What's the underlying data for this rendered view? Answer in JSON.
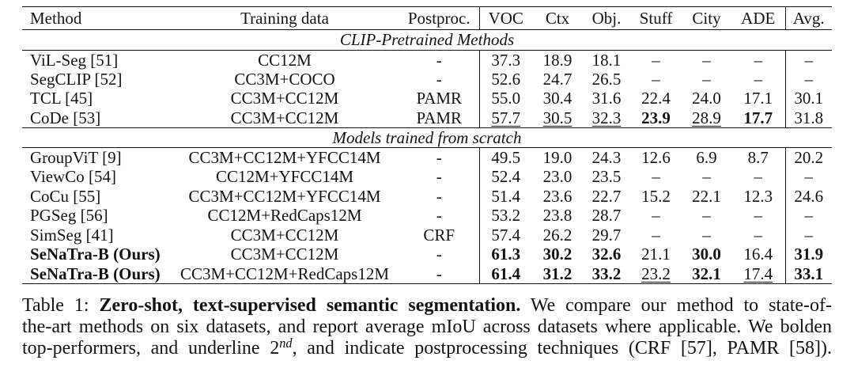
{
  "table": {
    "columns": [
      "Method",
      "Training data",
      "Postproc.",
      "VOC",
      "Ctx",
      "Obj.",
      "Stuff",
      "City",
      "ADE",
      "Avg."
    ],
    "sections": [
      {
        "title": "CLIP-Pretrained Methods",
        "rows": [
          {
            "method": "ViL-Seg [51]",
            "method_mark": "",
            "training_data": "CC12M",
            "postproc": "-",
            "scores": [
              {
                "value": "37.3",
                "mark": ""
              },
              {
                "value": "18.9",
                "mark": ""
              },
              {
                "value": "18.1",
                "mark": ""
              },
              {
                "value": "–",
                "mark": ""
              },
              {
                "value": "–",
                "mark": ""
              },
              {
                "value": "–",
                "mark": ""
              },
              {
                "value": "–",
                "mark": ""
              }
            ]
          },
          {
            "method": "SegCLIP [52]",
            "method_mark": "",
            "training_data": "CC3M+COCO",
            "postproc": "-",
            "scores": [
              {
                "value": "52.6",
                "mark": ""
              },
              {
                "value": "24.7",
                "mark": ""
              },
              {
                "value": "26.5",
                "mark": ""
              },
              {
                "value": "–",
                "mark": ""
              },
              {
                "value": "–",
                "mark": ""
              },
              {
                "value": "–",
                "mark": ""
              },
              {
                "value": "–",
                "mark": ""
              }
            ]
          },
          {
            "method": "TCL [45]",
            "method_mark": "",
            "training_data": "CC3M+CC12M",
            "postproc": "PAMR",
            "scores": [
              {
                "value": "55.0",
                "mark": ""
              },
              {
                "value": "30.4",
                "mark": ""
              },
              {
                "value": "31.6",
                "mark": ""
              },
              {
                "value": "22.4",
                "mark": ""
              },
              {
                "value": "24.0",
                "mark": ""
              },
              {
                "value": "17.1",
                "mark": ""
              },
              {
                "value": "30.1",
                "mark": ""
              }
            ]
          },
          {
            "method": "CoDe [53]",
            "method_mark": "",
            "training_data": "CC3M+CC12M",
            "postproc": "PAMR",
            "scores": [
              {
                "value": "57.7",
                "mark": "underline"
              },
              {
                "value": "30.5",
                "mark": "underline"
              },
              {
                "value": "32.3",
                "mark": "underline"
              },
              {
                "value": "23.9",
                "mark": "bold"
              },
              {
                "value": "28.9",
                "mark": "underline"
              },
              {
                "value": "17.7",
                "mark": "bold"
              },
              {
                "value": "31.8",
                "mark": ""
              }
            ]
          }
        ]
      },
      {
        "title": "Models trained from scratch",
        "rows": [
          {
            "method": "GroupViT [9]",
            "method_mark": "",
            "training_data": "CC3M+CC12M+YFCC14M",
            "postproc": "-",
            "scores": [
              {
                "value": "49.5",
                "mark": ""
              },
              {
                "value": "19.0",
                "mark": ""
              },
              {
                "value": "24.3",
                "mark": ""
              },
              {
                "value": "12.6",
                "mark": ""
              },
              {
                "value": "6.9",
                "mark": ""
              },
              {
                "value": "8.7",
                "mark": ""
              },
              {
                "value": "20.2",
                "mark": ""
              }
            ]
          },
          {
            "method": "ViewCo [54]",
            "method_mark": "",
            "training_data": "CC12M+YFCC14M",
            "postproc": "-",
            "scores": [
              {
                "value": "52.4",
                "mark": ""
              },
              {
                "value": "23.0",
                "mark": ""
              },
              {
                "value": "23.5",
                "mark": ""
              },
              {
                "value": "–",
                "mark": ""
              },
              {
                "value": "–",
                "mark": ""
              },
              {
                "value": "–",
                "mark": ""
              },
              {
                "value": "–",
                "mark": ""
              }
            ]
          },
          {
            "method": "CoCu [55]",
            "method_mark": "",
            "training_data": "CC3M+CC12M+YFCC14M",
            "postproc": "-",
            "scores": [
              {
                "value": "51.4",
                "mark": ""
              },
              {
                "value": "23.6",
                "mark": ""
              },
              {
                "value": "22.7",
                "mark": ""
              },
              {
                "value": "15.2",
                "mark": ""
              },
              {
                "value": "22.1",
                "mark": ""
              },
              {
                "value": "12.3",
                "mark": ""
              },
              {
                "value": "24.6",
                "mark": ""
              }
            ]
          },
          {
            "method": "PGSeg [56]",
            "method_mark": "",
            "training_data": "CC12M+RedCaps12M",
            "postproc": "-",
            "scores": [
              {
                "value": "53.2",
                "mark": ""
              },
              {
                "value": "23.8",
                "mark": ""
              },
              {
                "value": "28.7",
                "mark": ""
              },
              {
                "value": "–",
                "mark": ""
              },
              {
                "value": "–",
                "mark": ""
              },
              {
                "value": "–",
                "mark": ""
              },
              {
                "value": "–",
                "mark": ""
              }
            ]
          },
          {
            "method": "SimSeg [41]",
            "method_mark": "",
            "training_data": "CC3M+CC12M",
            "postproc": "CRF",
            "scores": [
              {
                "value": "57.4",
                "mark": ""
              },
              {
                "value": "26.2",
                "mark": ""
              },
              {
                "value": "29.7",
                "mark": ""
              },
              {
                "value": "–",
                "mark": ""
              },
              {
                "value": "–",
                "mark": ""
              },
              {
                "value": "–",
                "mark": ""
              },
              {
                "value": "–",
                "mark": ""
              }
            ]
          },
          {
            "method": "SeNaTra-B (Ours)",
            "method_mark": "bold",
            "training_data": "CC3M+CC12M",
            "postproc": "-",
            "scores": [
              {
                "value": "61.3",
                "mark": "bold"
              },
              {
                "value": "30.2",
                "mark": "bold"
              },
              {
                "value": "32.6",
                "mark": "bold"
              },
              {
                "value": "21.1",
                "mark": ""
              },
              {
                "value": "30.0",
                "mark": "bold"
              },
              {
                "value": "16.4",
                "mark": ""
              },
              {
                "value": "31.9",
                "mark": "bold"
              }
            ]
          },
          {
            "method": "SeNaTra-B (Ours)",
            "method_mark": "bold",
            "training_data": "CC3M+CC12M+RedCaps12M",
            "postproc": "-",
            "scores": [
              {
                "value": "61.4",
                "mark": "bold"
              },
              {
                "value": "31.2",
                "mark": "bold"
              },
              {
                "value": "33.2",
                "mark": "bold"
              },
              {
                "value": "23.2",
                "mark": "underline"
              },
              {
                "value": "32.1",
                "mark": "bold"
              },
              {
                "value": "17.4",
                "mark": "underline"
              },
              {
                "value": "33.1",
                "mark": "bold"
              }
            ]
          }
        ]
      }
    ]
  },
  "caption": {
    "label": "Table 1:",
    "title": "Zero-shot, text-supervised semantic segmentation.",
    "line1_text": "We compare our method to state-of-",
    "line2_text": "the-art methods on six datasets, and report average mIoU across datasets where applicable. We bolden",
    "line3_text_before": "top-performers, and underline",
    "ordinal_base": "2",
    "ordinal_sup": "nd",
    "line3_text_after": ", and indicate postprocessing techniques (CRF [57], PAMR [58])."
  }
}
